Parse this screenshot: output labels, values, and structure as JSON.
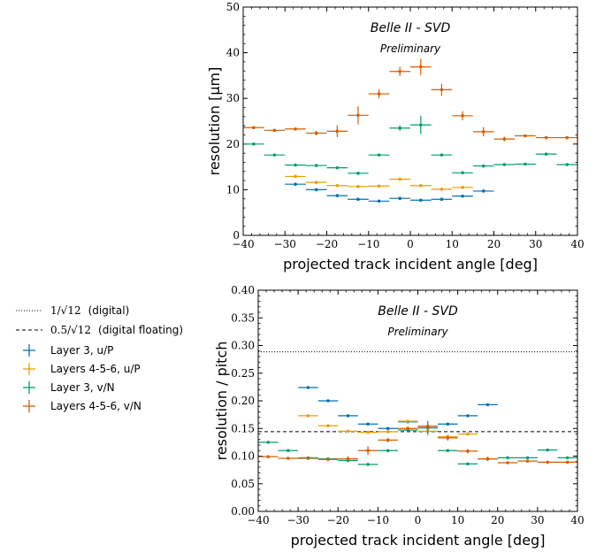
{
  "legend": {
    "entries": [
      {
        "label_prefix": "1/√12",
        "label_suffix": "(digital)",
        "style": "dotted",
        "color": "#000000"
      },
      {
        "label_prefix": "0.5/√12",
        "label_suffix": "(digital floating)",
        "style": "dashed",
        "color": "#000000"
      },
      {
        "label": "Layer 3, u/P",
        "style": "marker",
        "color": "#0072B2"
      },
      {
        "label": "Layers 4-5-6, u/P",
        "style": "marker",
        "color": "#E69F00"
      },
      {
        "label": "Layer 3, v/N",
        "style": "marker",
        "color": "#009E73"
      },
      {
        "label": "Layers 4-5-6, v/N",
        "style": "marker",
        "color": "#D55E00"
      }
    ]
  },
  "chart_data": [
    {
      "type": "scatter",
      "title": "Belle II - SVD",
      "subtitle": "Preliminary",
      "xlabel": "projected track incident angle [deg]",
      "ylabel": "resolution [μm]",
      "xlim": [
        -40,
        40
      ],
      "ylim": [
        0,
        50
      ],
      "xticks": [
        -40,
        -30,
        -20,
        -10,
        0,
        10,
        20,
        30,
        40
      ],
      "xtick_labels": [
        "−40",
        "−30",
        "−20",
        "−10",
        "0",
        "10",
        "20",
        "30",
        "40"
      ],
      "yticks": [
        0,
        10,
        20,
        30,
        40,
        50
      ],
      "ytick_labels": [
        "0",
        "10",
        "20",
        "30",
        "40",
        "50"
      ],
      "grid": false,
      "series": [
        {
          "name": "Layer 3, u/P",
          "color": "#0072B2",
          "x": [
            -27.5,
            -22.5,
            -17.5,
            -12.5,
            -7.5,
            -2.5,
            2.5,
            7.5,
            12.5,
            17.5
          ],
          "y": [
            11.2,
            10.0,
            8.7,
            7.9,
            7.5,
            8.1,
            7.7,
            7.9,
            8.6,
            9.7
          ],
          "xerr": [
            2.5,
            2.5,
            2.5,
            2.5,
            2.5,
            2.5,
            2.5,
            2.5,
            2.5,
            2.5
          ],
          "yerr": [
            0.3,
            0.3,
            0.3,
            0.3,
            0.3,
            0.3,
            0.3,
            0.3,
            0.3,
            0.3
          ]
        },
        {
          "name": "Layers 4-5-6, u/P",
          "color": "#E69F00",
          "x": [
            -27.5,
            -22.5,
            -17.5,
            -12.5,
            -7.5,
            -2.5,
            2.5,
            7.5,
            12.5
          ],
          "y": [
            12.9,
            11.6,
            10.9,
            10.7,
            10.8,
            12.3,
            10.9,
            10.1,
            10.5
          ],
          "xerr": [
            2.5,
            2.5,
            2.5,
            2.5,
            2.5,
            2.5,
            2.5,
            2.5,
            2.5
          ],
          "yerr": [
            0.3,
            0.3,
            0.3,
            0.3,
            0.3,
            0.3,
            0.3,
            0.3,
            0.3
          ]
        },
        {
          "name": "Layer 3, v/N",
          "color": "#009E73",
          "x": [
            -37.5,
            -32.5,
            -27.5,
            -22.5,
            -17.5,
            -12.5,
            -7.5,
            -2.5,
            2.5,
            7.5,
            12.5,
            17.5,
            22.5,
            27.5,
            32.5,
            37.5
          ],
          "y": [
            20.0,
            17.6,
            15.4,
            15.3,
            14.8,
            13.6,
            17.6,
            23.5,
            24.2,
            17.6,
            13.7,
            15.2,
            15.5,
            15.6,
            17.8,
            15.5
          ],
          "xerr": [
            2.5,
            2.5,
            2.5,
            2.5,
            2.5,
            2.5,
            2.5,
            2.5,
            2.5,
            2.5,
            2.5,
            2.5,
            2.5,
            2.5,
            2.5,
            2.5
          ],
          "yerr": [
            0.3,
            0.3,
            0.3,
            0.3,
            0.3,
            0.3,
            0.3,
            0.6,
            2.0,
            0.3,
            0.3,
            0.3,
            0.3,
            0.3,
            0.3,
            0.3
          ]
        },
        {
          "name": "Layers 4-5-6, v/N",
          "color": "#D55E00",
          "x": [
            -37.5,
            -32.5,
            -27.5,
            -22.5,
            -17.5,
            -12.5,
            -7.5,
            -2.5,
            2.5,
            7.5,
            12.5,
            17.5,
            22.5,
            27.5,
            32.5,
            37.5
          ],
          "y": [
            23.6,
            23.0,
            23.3,
            22.4,
            22.8,
            26.3,
            31.0,
            35.9,
            36.9,
            31.9,
            26.2,
            22.7,
            21.1,
            21.8,
            21.4,
            21.4
          ],
          "xerr": [
            2.5,
            2.5,
            2.5,
            2.5,
            2.5,
            2.5,
            2.5,
            2.5,
            2.5,
            2.5,
            2.5,
            2.5,
            2.5,
            2.5,
            2.5,
            2.5
          ],
          "yerr": [
            0.3,
            0.3,
            0.3,
            0.5,
            1.3,
            2.0,
            1.0,
            1.0,
            1.8,
            1.3,
            1.0,
            1.0,
            0.5,
            0.3,
            0.3,
            0.3
          ]
        }
      ]
    },
    {
      "type": "scatter",
      "title": "Belle II - SVD",
      "subtitle": "Preliminary",
      "xlabel": "projected track incident angle [deg]",
      "ylabel": "resolution / pitch",
      "xlim": [
        -40,
        40
      ],
      "ylim": [
        0,
        0.4
      ],
      "xticks": [
        -40,
        -30,
        -20,
        -10,
        0,
        10,
        20,
        30,
        40
      ],
      "xtick_labels": [
        "−40",
        "−30",
        "−20",
        "−10",
        "0",
        "10",
        "20",
        "30",
        "40"
      ],
      "yticks": [
        0,
        0.05,
        0.1,
        0.15,
        0.2,
        0.25,
        0.3,
        0.35,
        0.4
      ],
      "ytick_labels": [
        "0.00",
        "0.05",
        "0.10",
        "0.15",
        "0.20",
        "0.25",
        "0.30",
        "0.35",
        "0.40"
      ],
      "grid": false,
      "reference_lines": [
        {
          "name": "1/√12 (digital)",
          "y": 0.2887,
          "style": "dotted"
        },
        {
          "name": "0.5/√12 (digital floating)",
          "y": 0.1443,
          "style": "dashed"
        }
      ],
      "series": [
        {
          "name": "Layer 3, u/P",
          "color": "#0072B2",
          "x": [
            -27.5,
            -22.5,
            -17.5,
            -12.5,
            -7.5,
            -2.5,
            2.5,
            7.5,
            12.5,
            17.5
          ],
          "y": [
            0.224,
            0.2,
            0.173,
            0.158,
            0.15,
            0.162,
            0.154,
            0.158,
            0.173,
            0.193
          ],
          "xerr": [
            2.5,
            2.5,
            2.5,
            2.5,
            2.5,
            2.5,
            2.5,
            2.5,
            2.5,
            2.5
          ],
          "yerr": [
            0.002,
            0.002,
            0.002,
            0.002,
            0.002,
            0.002,
            0.002,
            0.002,
            0.002,
            0.002
          ]
        },
        {
          "name": "Layers 4-5-6, u/P",
          "color": "#E69F00",
          "x": [
            -27.5,
            -22.5,
            -17.5,
            -12.5,
            -7.5,
            -2.5,
            2.5,
            7.5,
            12.5
          ],
          "y": [
            0.173,
            0.155,
            0.145,
            0.143,
            0.144,
            0.163,
            0.145,
            0.135,
            0.14
          ],
          "xerr": [
            2.5,
            2.5,
            2.5,
            2.5,
            2.5,
            2.5,
            2.5,
            2.5,
            2.5
          ],
          "yerr": [
            0.002,
            0.002,
            0.002,
            0.002,
            0.002,
            0.002,
            0.002,
            0.002,
            0.002
          ]
        },
        {
          "name": "Layer 3, v/N",
          "color": "#009E73",
          "x": [
            -37.5,
            -32.5,
            -27.5,
            -22.5,
            -17.5,
            -12.5,
            -7.5,
            -2.5,
            2.5,
            7.5,
            12.5,
            17.5,
            22.5,
            27.5,
            32.5,
            37.5
          ],
          "y": [
            0.125,
            0.11,
            0.096,
            0.095,
            0.092,
            0.085,
            0.11,
            0.147,
            0.151,
            0.11,
            0.086,
            0.095,
            0.097,
            0.097,
            0.111,
            0.097
          ],
          "xerr": [
            2.5,
            2.5,
            2.5,
            2.5,
            2.5,
            2.5,
            2.5,
            2.5,
            2.5,
            2.5,
            2.5,
            2.5,
            2.5,
            2.5,
            2.5,
            2.5
          ],
          "yerr": [
            0.002,
            0.002,
            0.002,
            0.002,
            0.002,
            0.002,
            0.002,
            0.004,
            0.013,
            0.002,
            0.002,
            0.002,
            0.002,
            0.002,
            0.002,
            0.002
          ]
        },
        {
          "name": "Layers 4-5-6, v/N",
          "color": "#D55E00",
          "x": [
            -37.5,
            -32.5,
            -27.5,
            -22.5,
            -17.5,
            -12.5,
            -7.5,
            -2.5,
            2.5,
            7.5,
            12.5,
            17.5,
            22.5,
            27.5,
            32.5,
            37.5
          ],
          "y": [
            0.099,
            0.096,
            0.097,
            0.094,
            0.095,
            0.11,
            0.129,
            0.15,
            0.154,
            0.133,
            0.109,
            0.095,
            0.088,
            0.091,
            0.089,
            0.089
          ],
          "xerr": [
            2.5,
            2.5,
            2.5,
            2.5,
            2.5,
            2.5,
            2.5,
            2.5,
            2.5,
            2.5,
            2.5,
            2.5,
            2.5,
            2.5,
            2.5,
            2.5
          ],
          "yerr": [
            0.002,
            0.002,
            0.002,
            0.003,
            0.005,
            0.008,
            0.004,
            0.004,
            0.007,
            0.005,
            0.004,
            0.004,
            0.002,
            0.002,
            0.002,
            0.002
          ]
        }
      ]
    }
  ]
}
